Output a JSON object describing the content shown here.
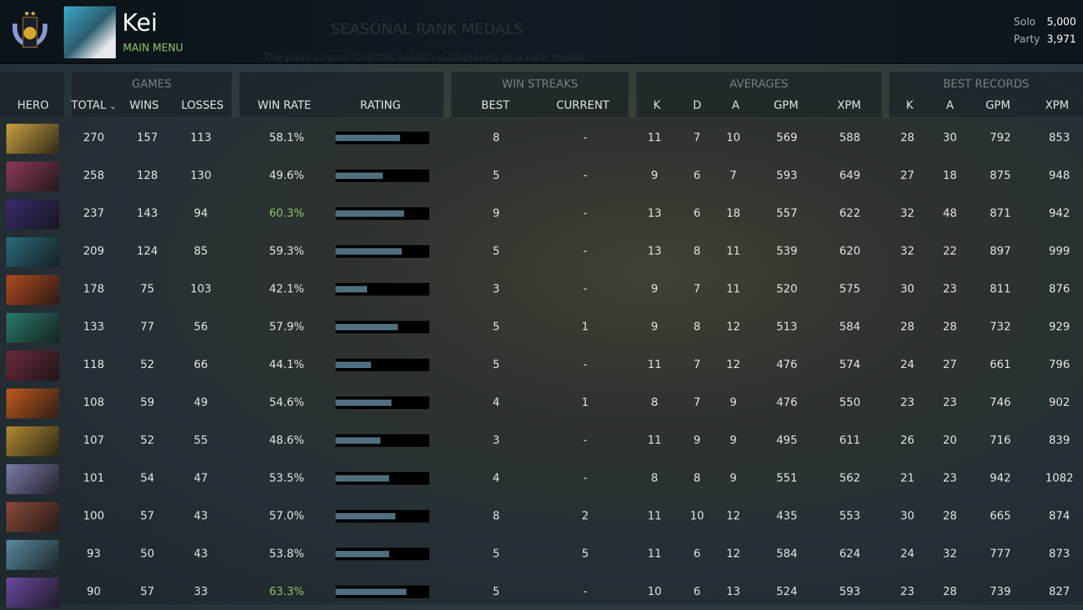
{
  "header": {
    "player_name": "Kei",
    "main_menu": "MAIN MENU",
    "bg_title": "SEASONAL RANK MEDALS",
    "bg_subtitle": "The peak of your skill this season is displayed as a rank medal.",
    "mmr": [
      {
        "label": "Solo",
        "value": "5,000"
      },
      {
        "label": "Party",
        "value": "3,971"
      }
    ]
  },
  "groups": {
    "games": "GAMES",
    "win_streaks": "WIN STREAKS",
    "averages": "AVERAGES",
    "best_records": "BEST RECORDS"
  },
  "columns": {
    "hero": "HERO",
    "total": "TOTAL",
    "sort_icon": "⌄",
    "wins": "WINS",
    "losses": "LOSSES",
    "win_rate": "WIN RATE",
    "rating": "RATING",
    "best": "BEST",
    "current": "CURRENT",
    "k": "K",
    "d": "D",
    "a": "A",
    "gpm": "GPM",
    "xpm": "XPM",
    "bk": "K",
    "ba": "A",
    "bgpm": "GPM",
    "bxpm": "XPM"
  },
  "colors": {
    "accent_green": "#8fc46a",
    "rating_fill": "#4f6f80"
  },
  "rows": [
    {
      "hero_color": "#c8a040",
      "total": "270",
      "wins": "157",
      "losses": "113",
      "win_rate": "58.1%",
      "rating": 0.69,
      "best": "8",
      "current": "-",
      "k": "11",
      "d": "7",
      "a": "10",
      "gpm": "569",
      "xpm": "588",
      "bk": "28",
      "ba": "30",
      "bgpm": "792",
      "bxpm": "853"
    },
    {
      "hero_color": "#8a3a5a",
      "total": "258",
      "wins": "128",
      "losses": "130",
      "win_rate": "49.6%",
      "rating": 0.5,
      "best": "5",
      "current": "-",
      "k": "9",
      "d": "6",
      "a": "7",
      "gpm": "593",
      "xpm": "649",
      "bk": "27",
      "ba": "18",
      "bgpm": "875",
      "bxpm": "948"
    },
    {
      "hero_color": "#3a2a6a",
      "total": "237",
      "wins": "143",
      "losses": "94",
      "win_rate": "60.3%",
      "highlight": true,
      "rating": 0.73,
      "best": "9",
      "current": "-",
      "k": "13",
      "d": "6",
      "a": "18",
      "gpm": "557",
      "xpm": "622",
      "bk": "32",
      "ba": "48",
      "bgpm": "871",
      "bxpm": "942"
    },
    {
      "hero_color": "#2a6a7a",
      "total": "209",
      "wins": "124",
      "losses": "85",
      "win_rate": "59.3%",
      "rating": 0.71,
      "best": "5",
      "current": "-",
      "k": "13",
      "d": "8",
      "a": "11",
      "gpm": "539",
      "xpm": "620",
      "bk": "32",
      "ba": "22",
      "bgpm": "897",
      "bxpm": "999"
    },
    {
      "hero_color": "#b04a20",
      "total": "178",
      "wins": "75",
      "losses": "103",
      "win_rate": "42.1%",
      "rating": 0.34,
      "best": "3",
      "current": "-",
      "k": "9",
      "d": "7",
      "a": "11",
      "gpm": "520",
      "xpm": "575",
      "bk": "30",
      "ba": "23",
      "bgpm": "811",
      "bxpm": "876"
    },
    {
      "hero_color": "#2a7a6a",
      "total": "133",
      "wins": "77",
      "losses": "56",
      "win_rate": "57.9%",
      "rating": 0.66,
      "best": "5",
      "current": "1",
      "k": "9",
      "d": "8",
      "a": "12",
      "gpm": "513",
      "xpm": "584",
      "bk": "28",
      "ba": "28",
      "bgpm": "732",
      "bxpm": "929"
    },
    {
      "hero_color": "#6a2a3a",
      "total": "118",
      "wins": "52",
      "losses": "66",
      "win_rate": "44.1%",
      "rating": 0.38,
      "best": "5",
      "current": "-",
      "k": "11",
      "d": "7",
      "a": "12",
      "gpm": "476",
      "xpm": "574",
      "bk": "24",
      "ba": "27",
      "bgpm": "661",
      "bxpm": "796"
    },
    {
      "hero_color": "#c05a20",
      "total": "108",
      "wins": "59",
      "losses": "49",
      "win_rate": "54.6%",
      "rating": 0.6,
      "best": "4",
      "current": "1",
      "k": "8",
      "d": "7",
      "a": "9",
      "gpm": "476",
      "xpm": "550",
      "bk": "23",
      "ba": "23",
      "bgpm": "746",
      "bxpm": "902"
    },
    {
      "hero_color": "#b08a30",
      "total": "107",
      "wins": "52",
      "losses": "55",
      "win_rate": "48.6%",
      "rating": 0.48,
      "best": "3",
      "current": "-",
      "k": "11",
      "d": "9",
      "a": "9",
      "gpm": "495",
      "xpm": "611",
      "bk": "26",
      "ba": "20",
      "bgpm": "716",
      "bxpm": "839"
    },
    {
      "hero_color": "#7a7aa8",
      "total": "101",
      "wins": "54",
      "losses": "47",
      "win_rate": "53.5%",
      "rating": 0.57,
      "best": "4",
      "current": "-",
      "k": "8",
      "d": "8",
      "a": "9",
      "gpm": "551",
      "xpm": "562",
      "bk": "21",
      "ba": "23",
      "bgpm": "942",
      "bxpm": "1082"
    },
    {
      "hero_color": "#8a4a3a",
      "total": "100",
      "wins": "57",
      "losses": "43",
      "win_rate": "57.0%",
      "rating": 0.64,
      "best": "8",
      "current": "2",
      "k": "11",
      "d": "10",
      "a": "12",
      "gpm": "435",
      "xpm": "553",
      "bk": "30",
      "ba": "28",
      "bgpm": "665",
      "bxpm": "874"
    },
    {
      "hero_color": "#5a8aa0",
      "total": "93",
      "wins": "50",
      "losses": "43",
      "win_rate": "53.8%",
      "rating": 0.57,
      "best": "5",
      "current": "5",
      "k": "11",
      "d": "6",
      "a": "12",
      "gpm": "584",
      "xpm": "624",
      "bk": "24",
      "ba": "32",
      "bgpm": "777",
      "bxpm": "873"
    },
    {
      "hero_color": "#6a4aa0",
      "total": "90",
      "wins": "57",
      "losses": "33",
      "win_rate": "63.3%",
      "highlight": true,
      "rating": 0.76,
      "best": "5",
      "current": "-",
      "k": "10",
      "d": "6",
      "a": "13",
      "gpm": "524",
      "xpm": "593",
      "bk": "23",
      "ba": "28",
      "bgpm": "739",
      "bxpm": "827"
    }
  ]
}
